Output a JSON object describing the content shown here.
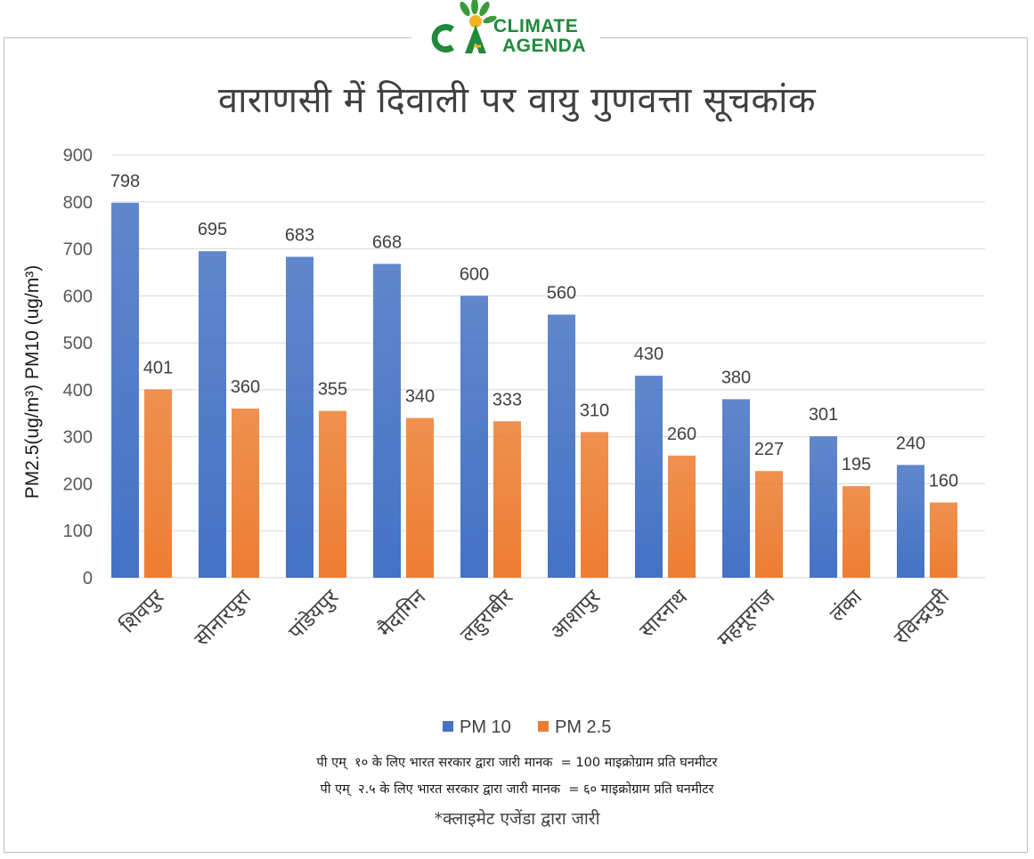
{
  "header": {
    "logo_text_line1": "CLIMATE",
    "logo_text_line2": "AGENDA",
    "logo_mark": "CA",
    "brand_colors": {
      "green": "#1e8a3a",
      "yellow": "#f0b323"
    }
  },
  "chart_data": {
    "type": "bar",
    "title": "वाराणसी में दिवाली पर वायु गुणवत्ता सूचकांक",
    "ylabel": "PM2.5(ug/m³) PM10 (ug/m³)",
    "xlabel": "",
    "ylim": [
      0,
      900
    ],
    "yticks": [
      0,
      100,
      200,
      300,
      400,
      500,
      600,
      700,
      800,
      900
    ],
    "grid": true,
    "legend_position": "bottom",
    "categories": [
      "शिवपुर",
      "सोनारपुरा",
      "पांडेयपुर",
      "मैदागिन",
      "लहुराबीर",
      "आशापुर",
      "सारनाथ",
      "महमूरगंज",
      "लंका",
      "रविन्द्रपुरी"
    ],
    "series": [
      {
        "name": "PM 10",
        "color": "#4472c4",
        "values": [
          798,
          695,
          683,
          668,
          600,
          560,
          430,
          380,
          301,
          240
        ]
      },
      {
        "name": "PM 2.5",
        "color": "#ed7d31",
        "values": [
          401,
          360,
          355,
          340,
          333,
          310,
          260,
          227,
          195,
          160
        ]
      }
    ]
  },
  "notes": {
    "pm10_standard": "पी एम्  १० के लिए भारत सरकार द्वारा जारी मानक  = 100 माइक्रोग्राम प्रति घनमीटर",
    "pm25_standard": "पी एम्  २.५ के लिए भारत सरकार द्वारा जारी मानक  = ६० माइक्रोग्राम प्रति घनमीटर",
    "credit": "*क्लाइमेट एजेंडा द्वारा जारी"
  }
}
